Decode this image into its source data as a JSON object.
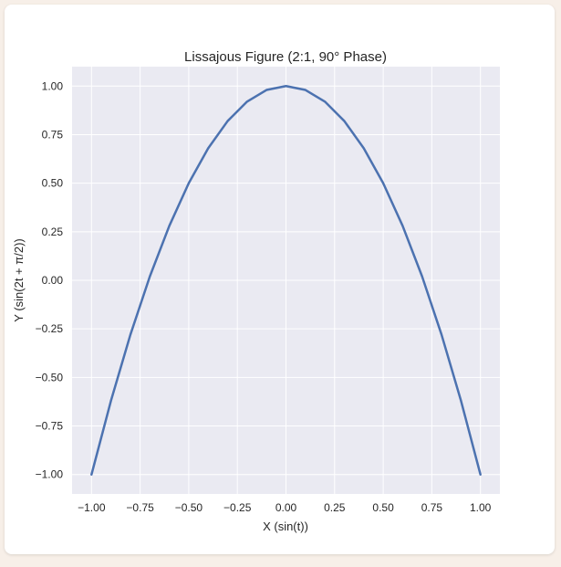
{
  "colors": {
    "page_background": "#f7efe8",
    "card_background": "#ffffff",
    "plot_background": "#eaeaf2",
    "grid": "#ffffff",
    "series_line": "#4c72b0",
    "text": "#262626"
  },
  "chart_data": {
    "type": "line",
    "title": "Lissajous Figure (2:1, 90° Phase)",
    "xlabel": "X (sin(t))",
    "ylabel": "Y (sin(2t + π/2))",
    "xlim": [
      -1.1,
      1.1
    ],
    "ylim": [
      -1.1,
      1.1
    ],
    "x_ticks": [
      -1.0,
      -0.75,
      -0.5,
      -0.25,
      0.0,
      0.25,
      0.5,
      0.75,
      1.0
    ],
    "x_tick_labels": [
      "−1.00",
      "−0.75",
      "−0.50",
      "−0.25",
      "0.00",
      "0.25",
      "0.50",
      "0.75",
      "1.00"
    ],
    "y_ticks": [
      1.0,
      0.75,
      0.5,
      0.25,
      0.0,
      -0.25,
      -0.5,
      -0.75,
      -1.0
    ],
    "y_tick_labels": [
      "1.00",
      "0.75",
      "0.50",
      "0.25",
      "0.00",
      "−0.25",
      "−0.50",
      "−0.75",
      "−1.00"
    ],
    "grid": true,
    "series": [
      {
        "x": [
          -1.0,
          -0.9,
          -0.8,
          -0.7,
          -0.6,
          -0.5,
          -0.4,
          -0.3,
          -0.2,
          -0.1,
          0.0,
          0.1,
          0.2,
          0.3,
          0.4,
          0.5,
          0.6,
          0.7,
          0.8,
          0.9,
          1.0
        ],
        "y": [
          -1.0,
          -0.62,
          -0.28,
          0.02,
          0.28,
          0.5,
          0.68,
          0.82,
          0.92,
          0.98,
          1.0,
          0.98,
          0.92,
          0.82,
          0.68,
          0.5,
          0.28,
          0.02,
          -0.28,
          -0.62,
          -1.0
        ]
      }
    ]
  }
}
